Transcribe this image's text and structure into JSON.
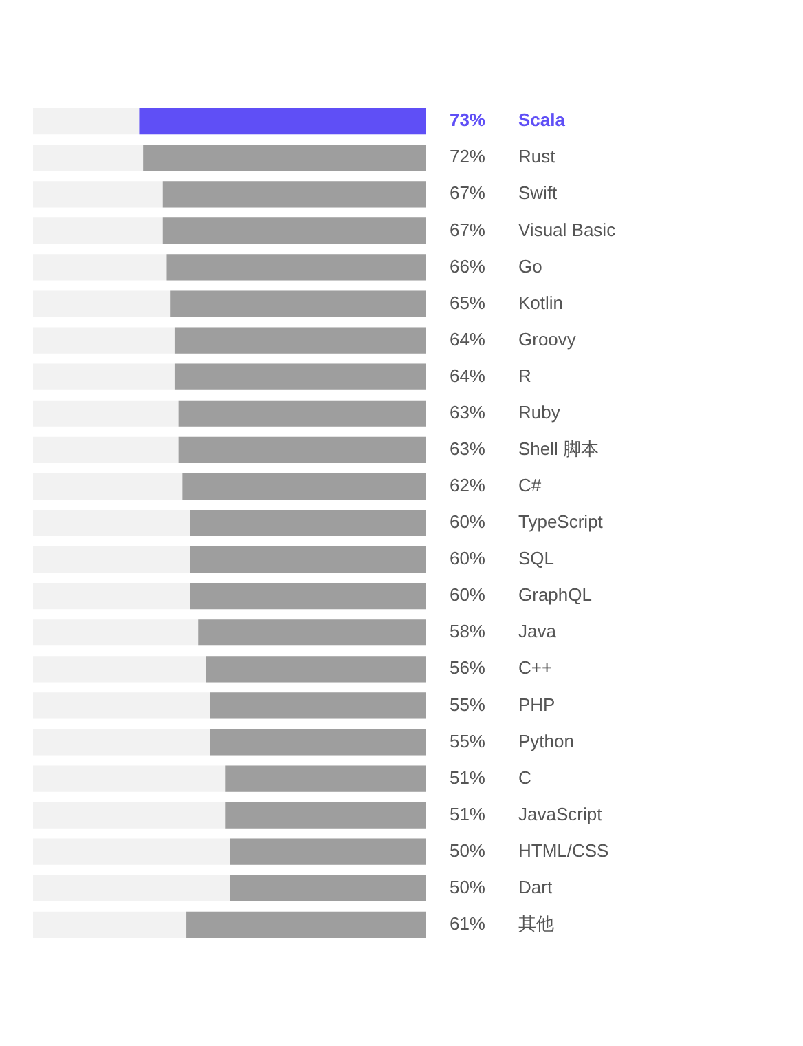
{
  "chart_data": {
    "type": "bar",
    "orientation": "horizontal",
    "categories": [
      "Scala",
      "Rust",
      "Swift",
      "Visual Basic",
      "Go",
      "Kotlin",
      "Groovy",
      "R",
      "Ruby",
      "Shell 脚本",
      "C#",
      "TypeScript",
      "SQL",
      "GraphQL",
      "Java",
      "C++",
      "PHP",
      "Python",
      "C",
      "JavaScript",
      "HTML/CSS",
      "Dart",
      "其他"
    ],
    "values": [
      73,
      72,
      67,
      67,
      66,
      65,
      64,
      64,
      63,
      63,
      62,
      60,
      60,
      60,
      58,
      56,
      55,
      55,
      51,
      51,
      50,
      50,
      61
    ],
    "colors": [
      "#5f4ff6",
      "#9e9e9e",
      "#9e9e9e",
      "#9e9e9e",
      "#9e9e9e",
      "#9e9e9e",
      "#9e9e9e",
      "#9e9e9e",
      "#9e9e9e",
      "#9e9e9e",
      "#9e9e9e",
      "#9e9e9e",
      "#9e9e9e",
      "#9e9e9e",
      "#9e9e9e",
      "#9e9e9e",
      "#9e9e9e",
      "#9e9e9e",
      "#9e9e9e",
      "#9e9e9e",
      "#9e9e9e",
      "#9e9e9e",
      "#9e9e9e"
    ],
    "value_labels": [
      "73%",
      "72%",
      "67%",
      "67%",
      "66%",
      "65%",
      "64%",
      "64%",
      "63%",
      "63%",
      "62%",
      "60%",
      "60%",
      "60%",
      "58%",
      "56%",
      "55%",
      "55%",
      "51%",
      "51%",
      "50%",
      "50%",
      "61%"
    ],
    "xlim": [
      100,
      0
    ],
    "tick_labels": "y"
  }
}
